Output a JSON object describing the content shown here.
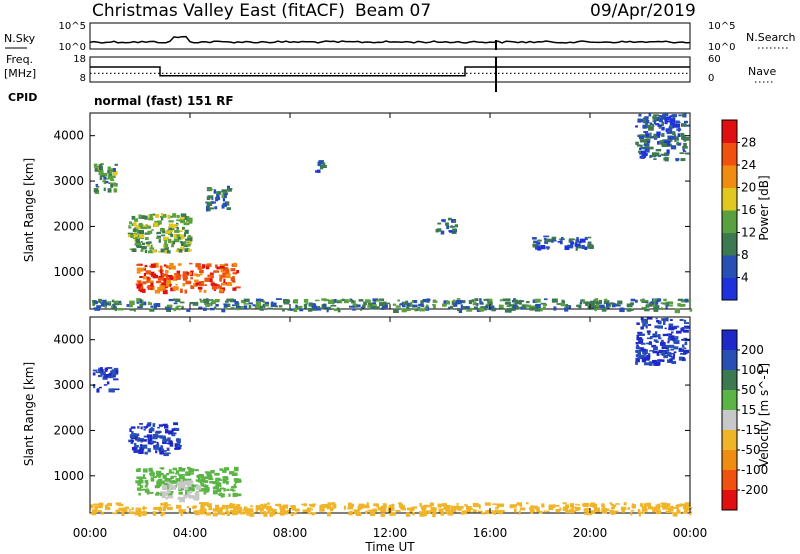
{
  "header": {
    "title": "Christmas Valley East (fitACF)",
    "beam": "Beam 07",
    "date": "09/Apr/2019"
  },
  "params": {
    "nsky_label": "N.Sky",
    "nsky_ticks": [
      "10^5",
      "10^0"
    ],
    "nsearch_label": "N.Search",
    "freq_label": "Freq.",
    "freq_unit": "[MHz]",
    "freq_ticks": [
      "18",
      "8"
    ],
    "nave_label": "Nave",
    "nave_ticks": [
      "60",
      "0"
    ],
    "cpid_label": "CPID",
    "cpid_value": "normal (fast) 151 RF"
  },
  "power_panel": {
    "ylabel": "Slant Range [km]",
    "yticks": [
      "1000",
      "2000",
      "3000",
      "4000"
    ],
    "colorbar_label": "Power [dB]",
    "colorbar_ticks": [
      "4",
      "8",
      "12",
      "16",
      "20",
      "24",
      "28"
    ],
    "colors": [
      "#1e32dc",
      "#2850b4",
      "#3c7850",
      "#5aa040",
      "#e0c820",
      "#f08c10",
      "#f05010",
      "#e01010"
    ]
  },
  "velocity_panel": {
    "ylabel": "Slant Range [km]",
    "yticks": [
      "1000",
      "2000",
      "3000",
      "4000"
    ],
    "colorbar_label": "Velocity [m s^-1]",
    "colorbar_ticks": [
      "200",
      "100",
      "50",
      "15",
      "-15",
      "-50",
      "-100",
      "-200"
    ],
    "colors": [
      "#1e28c8",
      "#2850b4",
      "#3c7850",
      "#5ab446",
      "#c8c8c8",
      "#f0b428",
      "#f08c10",
      "#f05010",
      "#e01010"
    ]
  },
  "time_axis": {
    "label": "Time UT",
    "ticks": [
      "00:00",
      "04:00",
      "08:00",
      "12:00",
      "16:00",
      "20:00",
      "00:00"
    ]
  },
  "chart_data": {
    "type": "heatmap",
    "title": "Christmas Valley East (fitACF)",
    "xlabel": "Time UT",
    "ylabel": "Slant Range [km]",
    "xlim": [
      0,
      24
    ],
    "ylim": [
      180,
      4500
    ],
    "freq": {
      "x": [
        0.0,
        2.8,
        2.8,
        15.0,
        15.0,
        24.0
      ],
      "y": [
        14,
        14,
        10.5,
        10.5,
        14,
        14
      ]
    },
    "nave": {
      "x": [
        0,
        24
      ],
      "y": [
        21,
        21
      ]
    },
    "power_regions": [
      {
        "name": "t0-4 far",
        "x": [
          0.1,
          1.0
        ],
        "y": [
          2800,
          3400
        ],
        "value": 12
      },
      {
        "name": "t2-5 mid",
        "x": [
          1.5,
          4.0
        ],
        "y": [
          1450,
          2300
        ],
        "value": 14
      },
      {
        "name": "t2-6 main",
        "x": [
          1.8,
          5.9
        ],
        "y": [
          600,
          1200
        ],
        "value": 26
      },
      {
        "name": "t5-6 upper",
        "x": [
          4.6,
          5.5
        ],
        "y": [
          2400,
          2900
        ],
        "value": 8
      },
      {
        "name": "t9 patch",
        "x": [
          9.0,
          9.3
        ],
        "y": [
          3200,
          3500
        ],
        "value": 6
      },
      {
        "name": "t14 patch",
        "x": [
          13.8,
          14.6
        ],
        "y": [
          1900,
          2200
        ],
        "value": 7
      },
      {
        "name": "t17-20 patch",
        "x": [
          17.5,
          20.0
        ],
        "y": [
          1550,
          1800
        ],
        "value": 6
      },
      {
        "name": "t22-24 high",
        "x": [
          21.8,
          23.8
        ],
        "y": [
          3500,
          4500
        ],
        "value": 7
      },
      {
        "name": "ground scatter",
        "x": [
          0.0,
          24.0
        ],
        "y": [
          180,
          420
        ],
        "value": 10
      }
    ],
    "velocity_regions": [
      {
        "name": "t0-1 far",
        "x": [
          0.1,
          1.0
        ],
        "y": [
          2900,
          3400
        ],
        "value": 200
      },
      {
        "name": "t2-4 mid",
        "x": [
          1.5,
          3.5
        ],
        "y": [
          1500,
          2200
        ],
        "value": 200
      },
      {
        "name": "t2-6 main",
        "x": [
          1.8,
          5.9
        ],
        "y": [
          600,
          1200
        ],
        "value": 30
      },
      {
        "name": "t3-4 core",
        "x": [
          2.8,
          4.3
        ],
        "y": [
          500,
          900
        ],
        "value": 0
      },
      {
        "name": "t22-24 high",
        "x": [
          21.8,
          23.8
        ],
        "y": [
          3500,
          4500
        ],
        "value": 200
      },
      {
        "name": "ground scatter",
        "x": [
          0.0,
          24.0
        ],
        "y": [
          180,
          420
        ],
        "value": -30
      }
    ]
  }
}
